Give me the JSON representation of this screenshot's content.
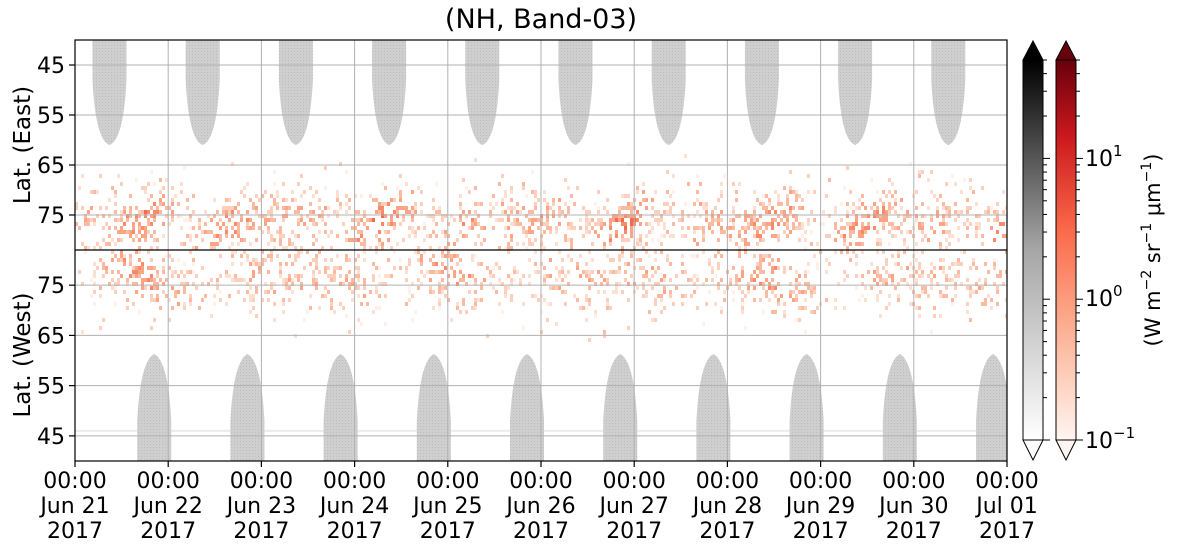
{
  "chart_data": {
    "type": "heatmap",
    "title": "(NH, Band-03)",
    "panels": [
      {
        "name": "east",
        "ylabel": "Lat. (East)",
        "y_ticks": [
          "45",
          "55",
          "65",
          "75"
        ]
      },
      {
        "name": "west",
        "ylabel": "Lat. (West)",
        "y_ticks": [
          "75",
          "65",
          "55",
          "45"
        ]
      }
    ],
    "x_ticks": [
      {
        "time": "00:00",
        "date": "Jun 21",
        "year": "2017"
      },
      {
        "time": "00:00",
        "date": "Jun 22",
        "year": "2017"
      },
      {
        "time": "00:00",
        "date": "Jun 23",
        "year": "2017"
      },
      {
        "time": "00:00",
        "date": "Jun 24",
        "year": "2017"
      },
      {
        "time": "00:00",
        "date": "Jun 25",
        "year": "2017"
      },
      {
        "time": "00:00",
        "date": "Jun 26",
        "year": "2017"
      },
      {
        "time": "00:00",
        "date": "Jun 27",
        "year": "2017"
      },
      {
        "time": "00:00",
        "date": "Jun 28",
        "year": "2017"
      },
      {
        "time": "00:00",
        "date": "Jun 29",
        "year": "2017"
      },
      {
        "time": "00:00",
        "date": "Jun 30",
        "year": "2017"
      },
      {
        "time": "00:00",
        "date": "Jul 01",
        "year": "2017"
      }
    ],
    "colorbar": {
      "scale": "log",
      "range": [
        0.1,
        50
      ],
      "tick_labels": [
        "10^1",
        "10^0",
        "10^-1"
      ],
      "label": "(W m^-2 sr^-1 μm^-1)",
      "cmaps": [
        "Greys",
        "Reds"
      ],
      "extend": "both"
    },
    "grid": true
  }
}
